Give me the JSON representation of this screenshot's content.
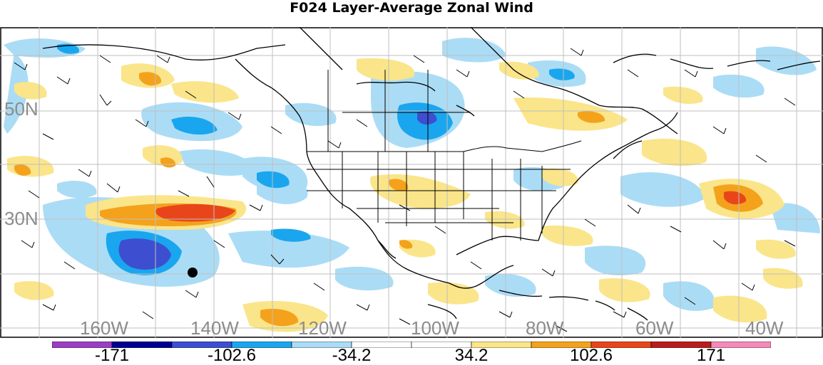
{
  "title": "F024 Layer-Average Zonal Wind",
  "lat_labels": [
    "50N",
    "30N"
  ],
  "lon_labels": [
    "160W",
    "140W",
    "120W",
    "100W",
    "80W",
    "60W",
    "40W"
  ],
  "legend": {
    "labels": [
      "-171",
      "-102.6",
      "-34.2",
      "34.2",
      "102.6",
      "171"
    ],
    "colors": [
      "#9a3fc4",
      "#000090",
      "#3d4fd0",
      "#1aa6ee",
      "#abdcf6",
      "#ffffff",
      "#ffffff",
      "#fae58a",
      "#f4a21c",
      "#e8461a",
      "#b91c1c",
      "#f58ab8"
    ]
  },
  "map": {
    "background": "#ffffff",
    "grid_color": "#bfbfbf",
    "coast_color": "#000000",
    "marker": "black-dot"
  }
}
